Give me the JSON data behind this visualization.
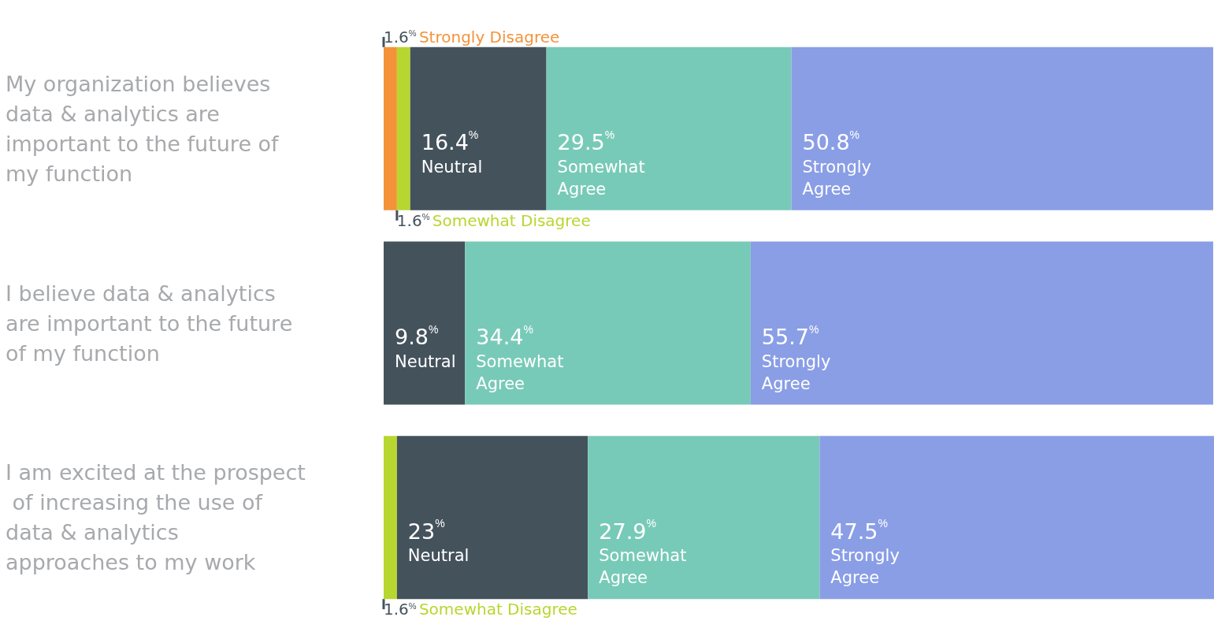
{
  "chart_data": {
    "type": "bar",
    "orientation": "horizontal",
    "stacked": true,
    "categories": [
      "My organization believes data & analytics are important to the future of my function",
      "I believe data & analytics are important to the future of my function",
      "I am excited at the prospect of increasing the use of data & analytics approaches to my work"
    ],
    "series": [
      {
        "name": "Strongly Disagree",
        "color": "#f4923a",
        "values": [
          1.6,
          null,
          null
        ],
        "value_labels": [
          "1.6%",
          null,
          null
        ]
      },
      {
        "name": "Somewhat Disagree",
        "color": "#b8d630",
        "values": [
          1.6,
          null,
          1.6
        ],
        "value_labels": [
          "1.6%",
          null,
          "1.6%"
        ]
      },
      {
        "name": "Neutral",
        "color": "#44525c",
        "values": [
          16.4,
          9.8,
          23
        ],
        "value_labels": [
          "16.4%",
          "9.8%",
          "23%"
        ]
      },
      {
        "name": "Somewhat Agree",
        "color": "#78cab8",
        "values": [
          29.5,
          34.4,
          27.9
        ],
        "value_labels": [
          "29.5%",
          "34.4%",
          "27.9%"
        ]
      },
      {
        "name": "Strongly Agree",
        "color": "#8a9ee6",
        "values": [
          50.8,
          55.7,
          47.5
        ],
        "value_labels": [
          "50.8%",
          "55.7%",
          "47.5%"
        ]
      }
    ]
  }
}
